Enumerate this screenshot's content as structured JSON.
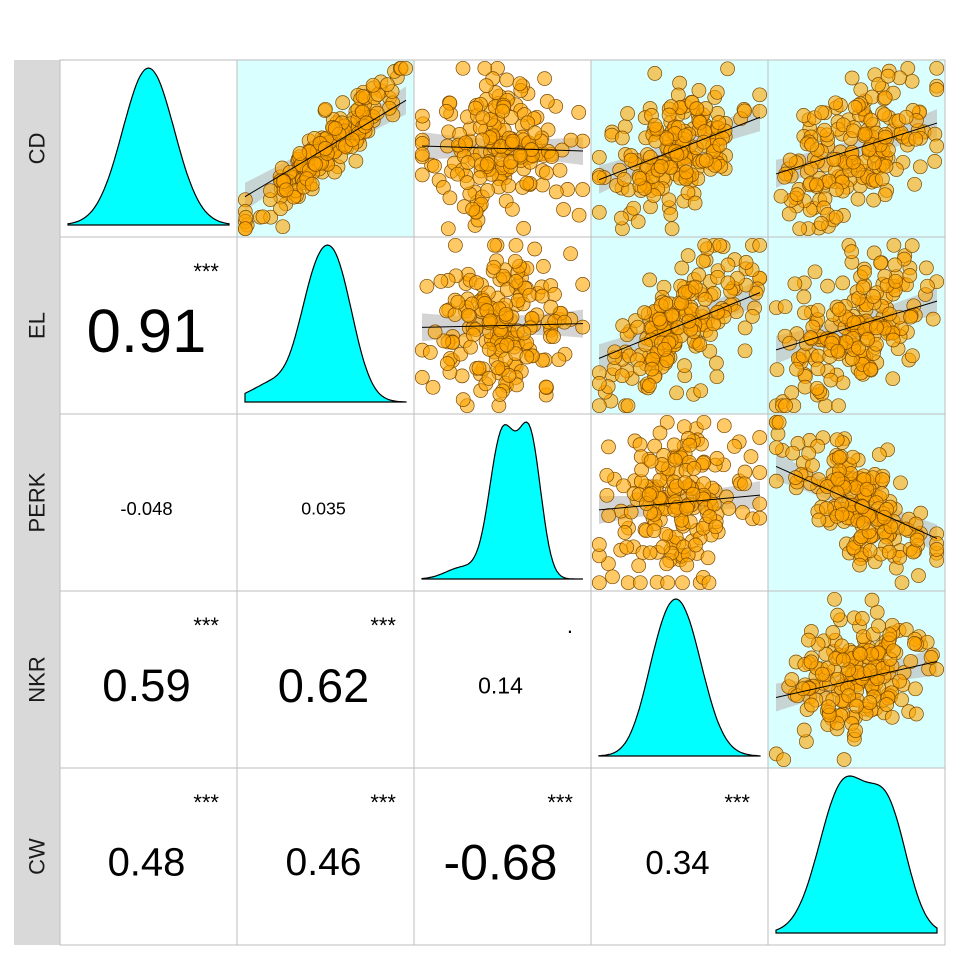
{
  "chart_data": {
    "type": "scatter",
    "title": "",
    "variables": [
      "CD",
      "EL",
      "PERK",
      "NKR",
      "CW"
    ],
    "grid": false,
    "point_color": "#FFA500",
    "density_fill": "#00FFFF",
    "highlight_bg": "#D9FFFF",
    "correlations": [
      {
        "row": "EL",
        "col": "CD",
        "r": "0.91",
        "stars": "***"
      },
      {
        "row": "PERK",
        "col": "CD",
        "r": "-0.048",
        "stars": ""
      },
      {
        "row": "PERK",
        "col": "EL",
        "r": "0.035",
        "stars": ""
      },
      {
        "row": "NKR",
        "col": "CD",
        "r": "0.59",
        "stars": "***"
      },
      {
        "row": "NKR",
        "col": "EL",
        "r": "0.62",
        "stars": "***"
      },
      {
        "row": "NKR",
        "col": "PERK",
        "r": "0.14",
        "stars": "."
      },
      {
        "row": "CW",
        "col": "CD",
        "r": "0.48",
        "stars": "***"
      },
      {
        "row": "CW",
        "col": "EL",
        "r": "0.46",
        "stars": "***"
      },
      {
        "row": "CW",
        "col": "PERK",
        "r": "-0.68",
        "stars": "***"
      },
      {
        "row": "CW",
        "col": "NKR",
        "r": "0.34",
        "stars": "***"
      }
    ]
  }
}
